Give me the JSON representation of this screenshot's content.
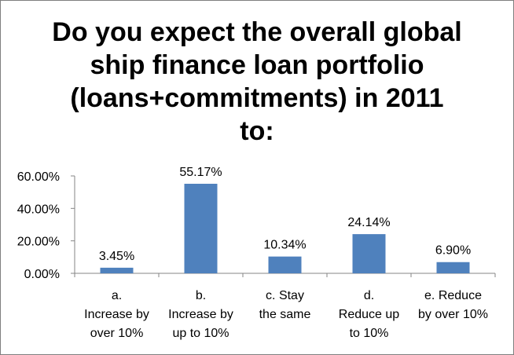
{
  "chart_data": {
    "type": "bar",
    "title_lines": [
      "Do you expect the overall global",
      "ship finance loan portfolio",
      "(loans+commitments) in 2011",
      "to:"
    ],
    "categories": [
      [
        "a.",
        "Increase by",
        "over 10%"
      ],
      [
        "b.",
        "Increase by",
        "up to 10%"
      ],
      [
        "c.        Stay",
        "the same"
      ],
      [
        "d.",
        "Reduce up",
        "to 10%"
      ],
      [
        "e.       Reduce",
        "by over 10%"
      ]
    ],
    "values": [
      3.45,
      55.17,
      10.34,
      24.14,
      6.9
    ],
    "data_labels": [
      "3.45%",
      "55.17%",
      "10.34%",
      "24.14%",
      "6.90%"
    ],
    "y_ticks": [
      "0.00%",
      "20.00%",
      "40.00%",
      "60.00%"
    ],
    "ylim": [
      0,
      60
    ],
    "bar_color": "#4f81bd",
    "grid": false,
    "legend": "none"
  }
}
